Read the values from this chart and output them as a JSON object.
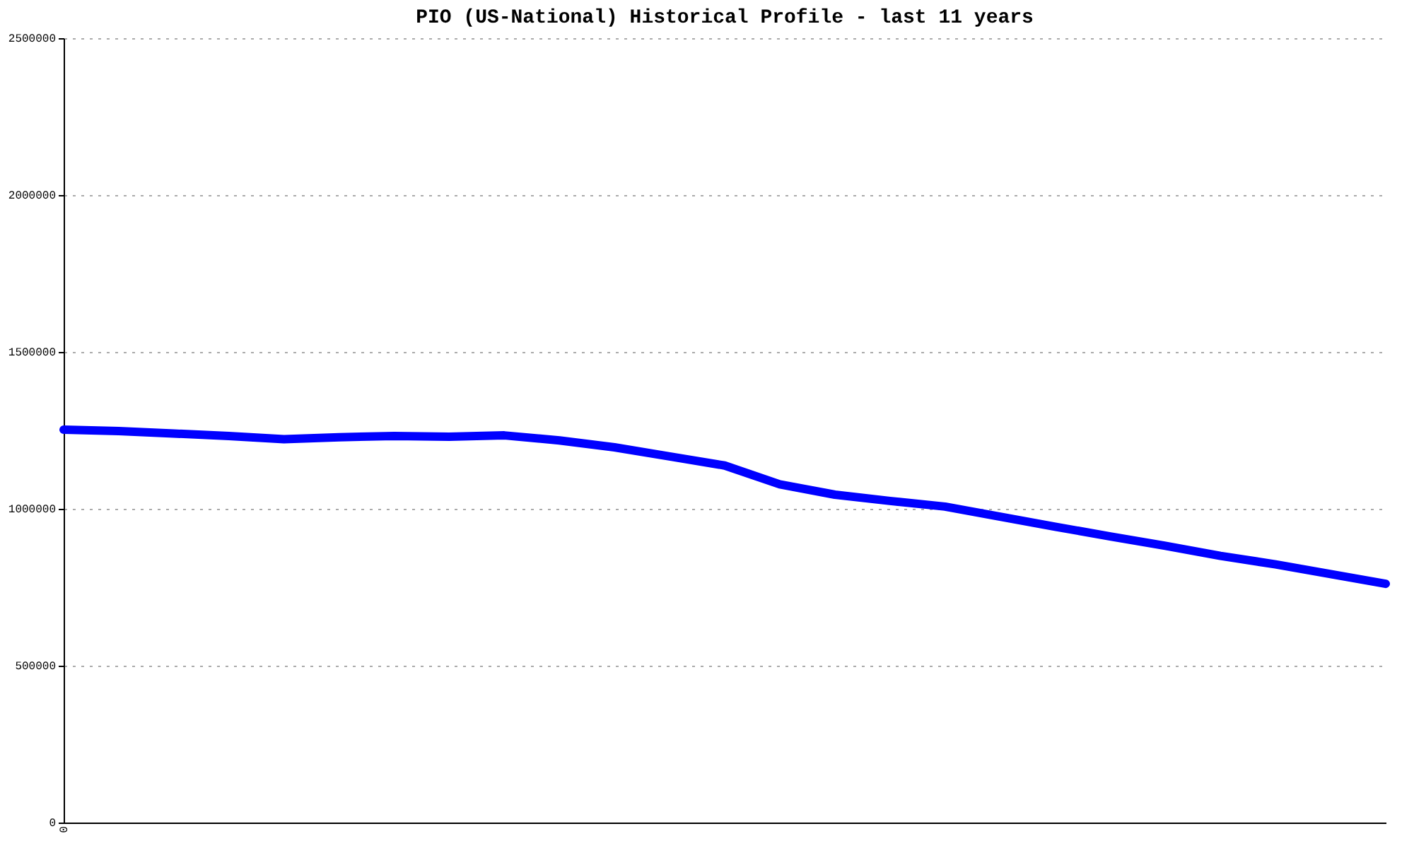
{
  "chart_data": {
    "type": "line",
    "title": "PIO (US-National) Historical Profile - last 11 years",
    "categories": [
      "0",
      null,
      null,
      null,
      null,
      null,
      null,
      null,
      null,
      null,
      null,
      null,
      null,
      null,
      null,
      null,
      null,
      null,
      null,
      null,
      null,
      null,
      null,
      null,
      null
    ],
    "series": [
      {
        "color": "#0000ff",
        "values": [
          1252000,
          1248000,
          1240000,
          1232000,
          1222000,
          1228000,
          1232000,
          1230000,
          1234000,
          1218000,
          1196000,
          1167000,
          1138000,
          1078000,
          1045000,
          1025000,
          1007000,
          975000,
          943000,
          912000,
          882000,
          850000,
          823000,
          792000,
          761000
        ]
      }
    ],
    "ylim": [
      0,
      2500000
    ],
    "yticks": [
      0,
      500000,
      1000000,
      1500000,
      2000000,
      2500000
    ],
    "grid": "y",
    "marker": "none",
    "line_style": "solid"
  }
}
